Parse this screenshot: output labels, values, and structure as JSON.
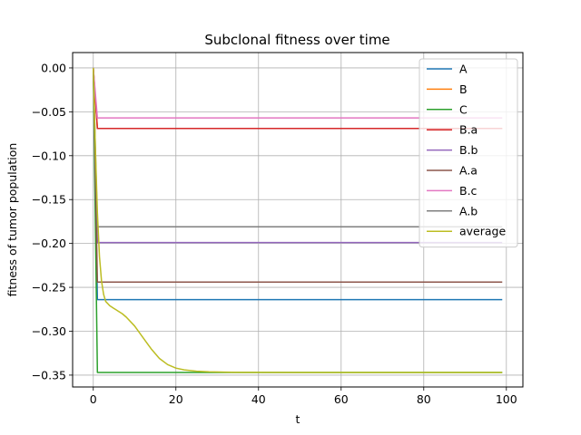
{
  "chart_data": {
    "type": "line",
    "title": "Subclonal fitness over time",
    "xlabel": "t",
    "ylabel": "fitness of tumor population",
    "xlim": [
      -5,
      104
    ],
    "ylim": [
      -0.3635,
      0.0175
    ],
    "xticks": [
      0,
      20,
      40,
      60,
      80,
      100
    ],
    "yticks": [
      0.0,
      -0.05,
      -0.1,
      -0.15,
      -0.2,
      -0.25,
      -0.3,
      -0.35
    ],
    "xtick_labels": [
      "0",
      "20",
      "40",
      "60",
      "80",
      "100"
    ],
    "ytick_labels": [
      "0.00",
      "−0.05",
      "−0.10",
      "−0.15",
      "−0.20",
      "−0.25",
      "−0.30",
      "−0.35"
    ],
    "grid": true,
    "legend_position": "top-right",
    "series": [
      {
        "name": "A",
        "color": "#1f77b4",
        "x": [
          0,
          1,
          99
        ],
        "y": [
          0.0,
          -0.264,
          -0.264
        ]
      },
      {
        "name": "B",
        "color": "#ff7f0e",
        "x": [
          0,
          1,
          99
        ],
        "y": [
          0.0,
          -0.069,
          -0.069
        ]
      },
      {
        "name": "C",
        "color": "#2ca02c",
        "x": [
          0,
          1,
          99
        ],
        "y": [
          0.0,
          -0.347,
          -0.347
        ]
      },
      {
        "name": "B.a",
        "color": "#d62728",
        "x": [
          0,
          1,
          99
        ],
        "y": [
          0.0,
          -0.069,
          -0.069
        ]
      },
      {
        "name": "B.b",
        "color": "#9467bd",
        "x": [
          0,
          1,
          99
        ],
        "y": [
          0.0,
          -0.199,
          -0.199
        ]
      },
      {
        "name": "A.a",
        "color": "#8c564b",
        "x": [
          0,
          1,
          99
        ],
        "y": [
          0.0,
          -0.244,
          -0.244
        ]
      },
      {
        "name": "B.c",
        "color": "#e377c2",
        "x": [
          0,
          1,
          99
        ],
        "y": [
          0.0,
          -0.057,
          -0.057
        ]
      },
      {
        "name": "A.b",
        "color": "#7f7f7f",
        "x": [
          0,
          1,
          99
        ],
        "y": [
          0.0,
          -0.181,
          -0.181
        ]
      },
      {
        "name": "average",
        "color": "#bcbd22",
        "x": [
          0,
          0.5,
          1,
          1.5,
          2,
          2.5,
          3,
          4,
          5,
          6,
          7,
          8,
          10,
          12,
          14,
          16,
          18,
          20,
          22,
          25,
          28,
          32,
          36,
          40,
          50,
          60,
          70,
          80,
          90,
          99
        ],
        "y": [
          0.0,
          -0.09,
          -0.165,
          -0.215,
          -0.243,
          -0.258,
          -0.266,
          -0.271,
          -0.274,
          -0.277,
          -0.28,
          -0.284,
          -0.294,
          -0.307,
          -0.32,
          -0.331,
          -0.338,
          -0.342,
          -0.344,
          -0.3455,
          -0.3462,
          -0.3466,
          -0.3468,
          -0.3469,
          -0.347,
          -0.347,
          -0.347,
          -0.347,
          -0.347,
          -0.347
        ]
      }
    ]
  }
}
